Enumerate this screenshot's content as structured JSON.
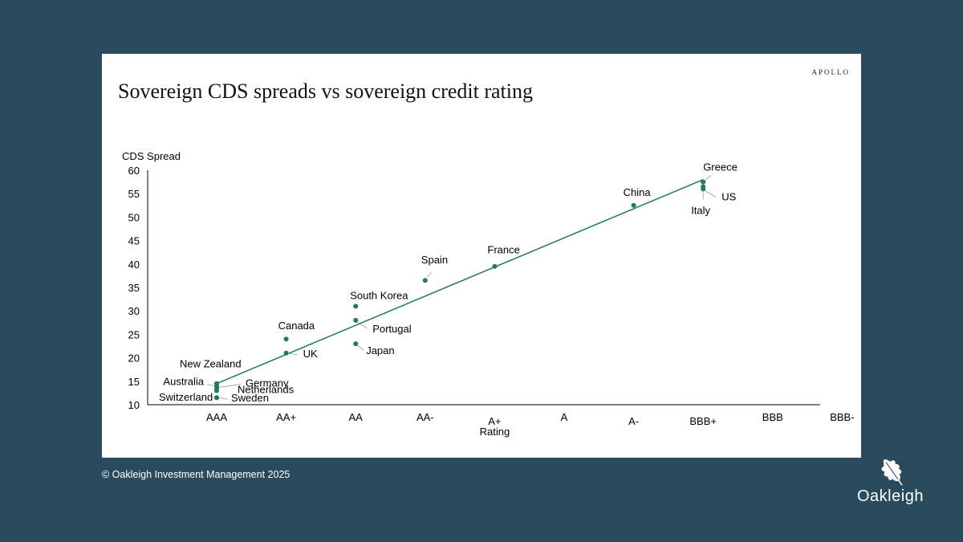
{
  "brand": "APOLLO",
  "title": "Sovereign CDS spreads vs sovereign credit rating",
  "footer": "© Oakleigh Investment Management 2025",
  "logo_text": "Oakleigh",
  "colors": {
    "background": "#2a4a5e",
    "marker": "#1e7a5e",
    "trend": "#1e7a5e"
  },
  "chart_data": {
    "type": "scatter",
    "title": "Sovereign CDS spreads vs sovereign credit rating",
    "ylabel": "CDS Spread",
    "xlabel": "Rating",
    "ylim": [
      10,
      60
    ],
    "yticks": [
      10,
      15,
      20,
      25,
      30,
      35,
      40,
      45,
      50,
      55,
      60
    ],
    "categories": [
      "AAA",
      "AA+",
      "AA",
      "AA-",
      "A+",
      "A",
      "A-",
      "BBB+",
      "BBB",
      "BBB-"
    ],
    "points": [
      {
        "label": "Greece",
        "rating": "BBB+",
        "x": 7,
        "y": 57.5
      },
      {
        "label": "US",
        "rating": "BBB+",
        "x": 7,
        "y": 56
      },
      {
        "label": "Italy",
        "rating": "BBB+",
        "x": 7,
        "y": 56.5
      },
      {
        "label": "China",
        "rating": "A-",
        "x": 6,
        "y": 52.5
      },
      {
        "label": "France",
        "rating": "A+",
        "x": 4,
        "y": 39.5
      },
      {
        "label": "Spain",
        "rating": "AA-",
        "x": 3,
        "y": 36.5
      },
      {
        "label": "South Korea",
        "rating": "AA",
        "x": 2,
        "y": 31
      },
      {
        "label": "Portugal",
        "rating": "AA",
        "x": 2,
        "y": 28
      },
      {
        "label": "Japan",
        "rating": "AA",
        "x": 2,
        "y": 23
      },
      {
        "label": "Canada",
        "rating": "AA+",
        "x": 1,
        "y": 24
      },
      {
        "label": "UK",
        "rating": "AA+",
        "x": 1,
        "y": 21
      },
      {
        "label": "New Zealand",
        "rating": "AAA",
        "x": 0,
        "y": 14.5
      },
      {
        "label": "Australia",
        "rating": "AAA",
        "x": 0,
        "y": 14
      },
      {
        "label": "Germany",
        "rating": "AAA",
        "x": 0,
        "y": 13.5
      },
      {
        "label": "Netherlands",
        "rating": "AAA",
        "x": 0,
        "y": 13
      },
      {
        "label": "Switzerland",
        "rating": "AAA",
        "x": 0,
        "y": 11.5
      },
      {
        "label": "Sweden",
        "rating": "AAA",
        "x": 0,
        "y": 11.5
      }
    ],
    "trendline": {
      "from": {
        "x": 0,
        "y": 14.5
      },
      "to": {
        "x": 7,
        "y": 58
      }
    }
  }
}
